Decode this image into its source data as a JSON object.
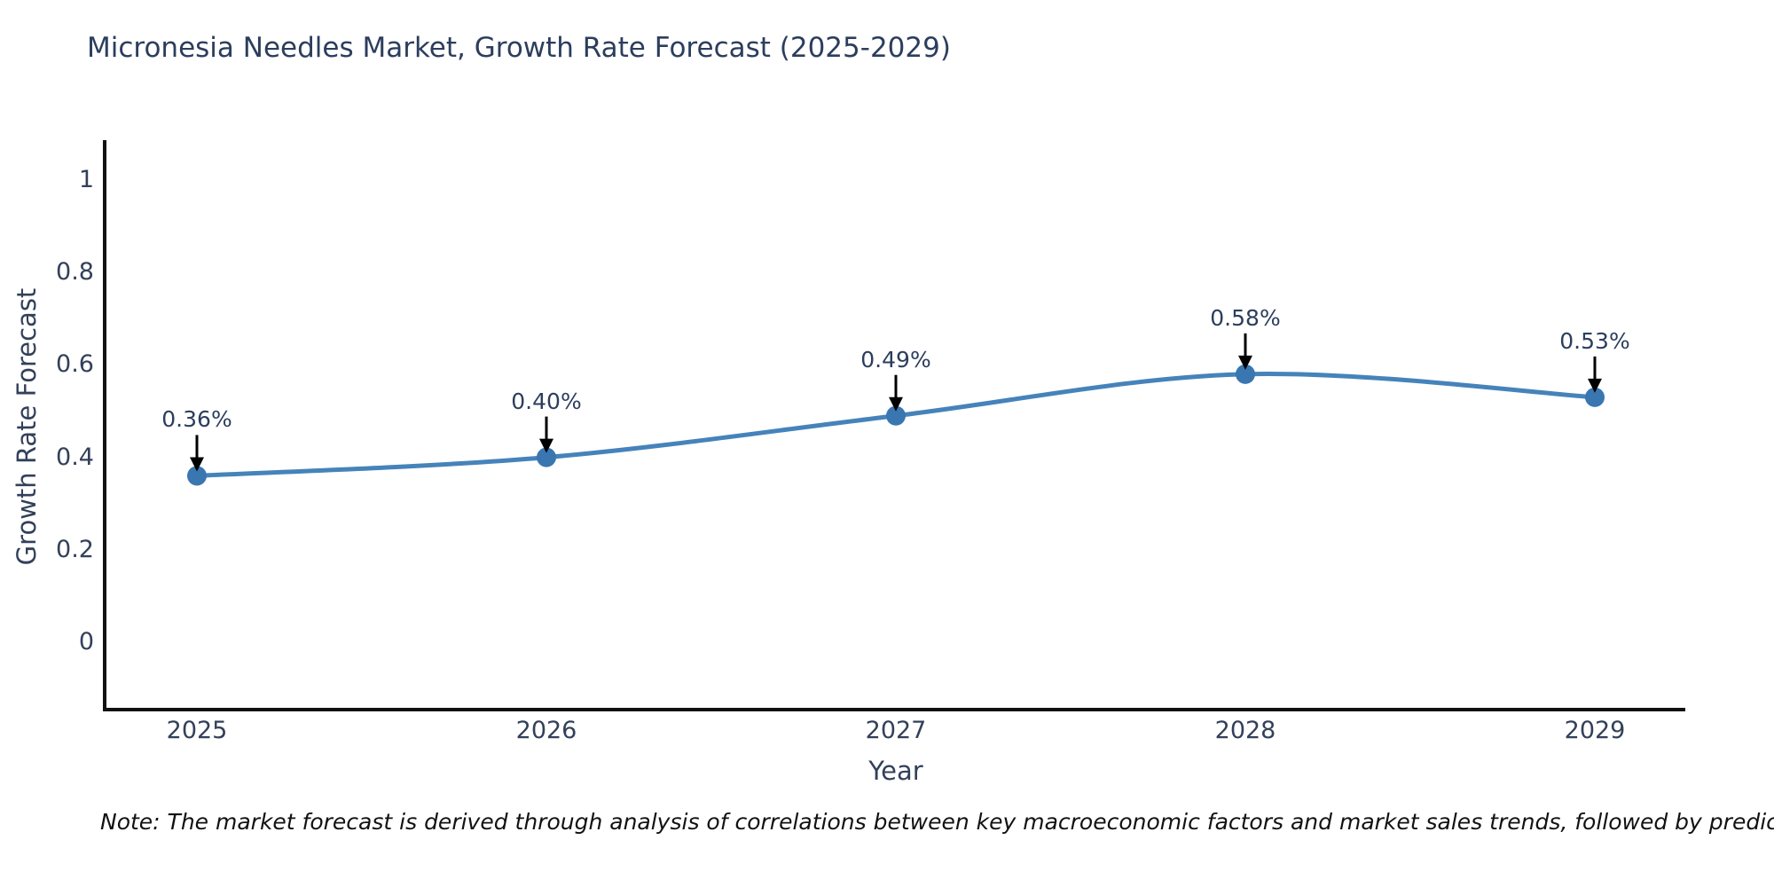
{
  "title": "Micronesia Needles Market, Growth Rate Forecast (2025-2029)",
  "chart_data": {
    "type": "line",
    "title": "Micronesia Needles Market, Growth Rate Forecast (2025-2029)",
    "categories": [
      "2025",
      "2026",
      "2027",
      "2028",
      "2029"
    ],
    "x": [
      2025,
      2026,
      2027,
      2028,
      2029
    ],
    "values": [
      0.36,
      0.4,
      0.49,
      0.58,
      0.53
    ],
    "point_labels": [
      "0.36%",
      "0.40%",
      "0.49%",
      "0.58%",
      "0.53%"
    ],
    "series_name": "Growth Rate Forecast",
    "xlabel": "Year",
    "ylabel": "Growth Rate Forecast",
    "yticks": [
      0,
      0.2,
      0.4,
      0.6,
      0.8,
      1
    ],
    "ytick_labels": [
      "0",
      "0.2",
      "0.4",
      "0.6",
      "0.8",
      "1"
    ],
    "ylim": [
      -0.15,
      1.09
    ],
    "xlim": [
      2024.74,
      2029.26
    ],
    "grid": false,
    "legend_position": "none",
    "line_shape": "spline",
    "colors": {
      "line": "#4583ba",
      "marker": "#3a76b0",
      "axis": "#111111",
      "annotation_arrow": "#000000",
      "text": "#2c3e5d"
    }
  },
  "footnote": "Note: The market forecast is derived through analysis of correlations between key macroeconomic factors and market sales trends, followed by predictive modeling to project future sales"
}
